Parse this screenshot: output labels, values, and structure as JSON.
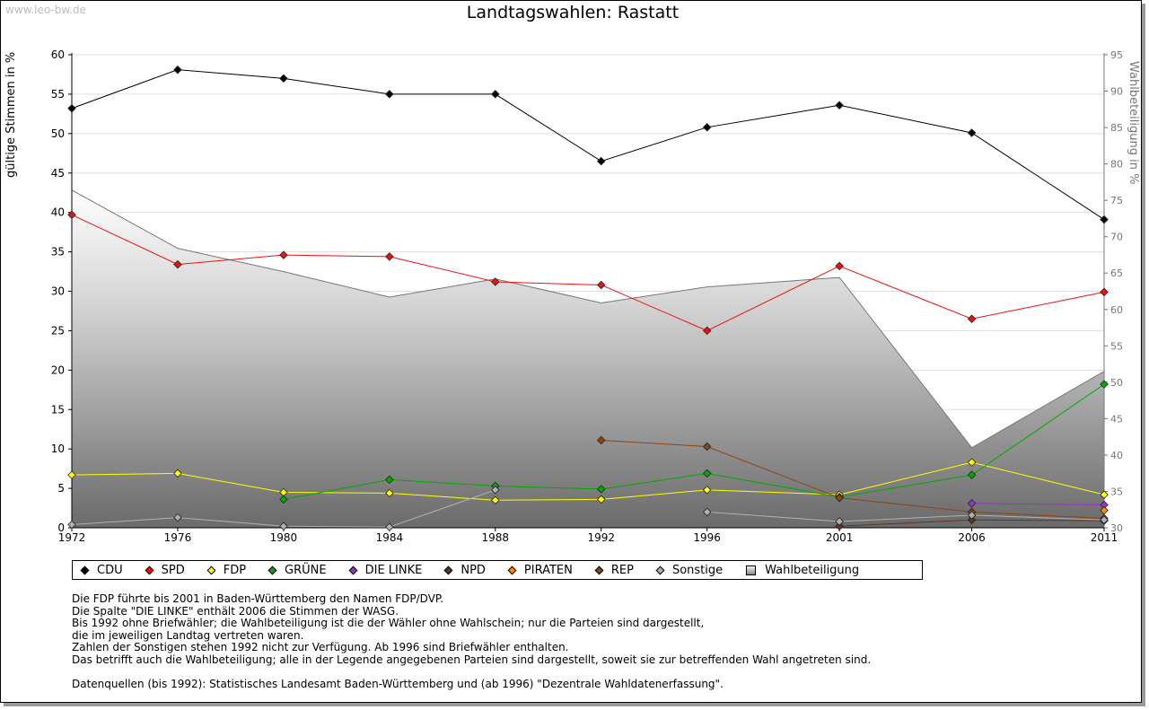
{
  "source": "www.leo-bw.de",
  "chart_data": {
    "type": "line",
    "title": "Landtagswahlen: Rastatt",
    "ylabel": "gültige Stimmen in %",
    "ylabel_right": "Wahlbeteiligung in %",
    "ylim": [
      0,
      60
    ],
    "ylim_right": [
      30,
      95
    ],
    "yticks": [
      "0",
      "5",
      "10",
      "15",
      "20",
      "25",
      "30",
      "35",
      "40",
      "45",
      "50",
      "55",
      "60"
    ],
    "yticks_right": [
      "30",
      "35",
      "40",
      "45",
      "50",
      "55",
      "60",
      "65",
      "70",
      "75",
      "80",
      "85",
      "90",
      "95"
    ],
    "x": [
      1972,
      1976,
      1980,
      1984,
      1988,
      1992,
      1996,
      2001,
      2006,
      2011
    ],
    "xtick_labels": [
      "1972",
      "1976",
      "1980",
      "1984",
      "1988",
      "1992",
      "1996",
      "2001",
      "2006",
      "2011"
    ],
    "series": [
      {
        "name": "CDU",
        "color": "#000000",
        "values": [
          53.2,
          58.1,
          57.0,
          55.0,
          55.0,
          46.5,
          50.8,
          53.6,
          50.1,
          39.1
        ]
      },
      {
        "name": "SPD",
        "color": "#ee1111",
        "values": [
          39.7,
          33.4,
          34.6,
          34.4,
          31.2,
          30.8,
          25.0,
          33.2,
          26.5,
          29.9
        ]
      },
      {
        "name": "FDP",
        "color": "#ffff00",
        "values": [
          6.7,
          6.9,
          4.5,
          4.4,
          3.5,
          3.6,
          4.8,
          4.2,
          8.3,
          4.2
        ]
      },
      {
        "name": "GRÜNE",
        "color": "#00aa00",
        "values": [
          null,
          null,
          3.6,
          6.1,
          5.3,
          4.9,
          6.9,
          3.9,
          6.7,
          18.2
        ]
      },
      {
        "name": "DIE LINKE",
        "color": "#9933cc",
        "values": [
          null,
          null,
          null,
          null,
          null,
          null,
          null,
          null,
          3.1,
          2.9
        ]
      },
      {
        "name": "NPD",
        "color": "#663322",
        "values": [
          null,
          null,
          null,
          null,
          null,
          null,
          null,
          0.2,
          1.0,
          0.9
        ]
      },
      {
        "name": "PIRATEN",
        "color": "#ff8800",
        "values": [
          null,
          null,
          null,
          null,
          null,
          null,
          null,
          null,
          null,
          2.2
        ]
      },
      {
        "name": "REP",
        "color": "#8b4513",
        "values": [
          null,
          null,
          null,
          null,
          null,
          11.1,
          10.3,
          3.8,
          2.0,
          1.2
        ]
      },
      {
        "name": "Sonstige",
        "color": "#b0b0b0",
        "values": [
          0.4,
          1.3,
          0.2,
          0.1,
          4.8,
          null,
          2.0,
          0.8,
          1.6,
          1.0
        ]
      }
    ],
    "turnout": {
      "name": "Wahlbeteiligung",
      "color": "#777777",
      "values": [
        76.4,
        68.4,
        65.2,
        61.7,
        64.2,
        60.9,
        63.1,
        64.4,
        41.0,
        51.5
      ]
    }
  },
  "legend": [
    "CDU",
    "SPD",
    "FDP",
    "GRÜNE",
    "DIE LINKE",
    "NPD",
    "PIRATEN",
    "REP",
    "Sonstige",
    "Wahlbeteiligung"
  ],
  "notes": [
    "Die FDP führte bis 2001 in Baden-Württemberg den Namen FDP/DVP.",
    "Die Spalte \"DIE LINKE\" enthält 2006 die Stimmen der WASG.",
    "Bis 1992 ohne Briefwähler; die Wahlbeteiligung ist die der Wähler ohne Wahlschein; nur die Parteien sind dargestellt,",
    "die im jeweiligen Landtag vertreten waren.",
    "Zahlen der Sonstigen stehen 1992 nicht zur Verfügung. Ab 1996 sind Briefwähler enthalten.",
    "Das betrifft auch die Wahlbeteiligung; alle in der Legende angegebenen Parteien sind dargestellt, soweit sie zur betreffenden Wahl angetreten sind."
  ],
  "datasource": "Datenquellen (bis 1992): Statistisches Landesamt Baden-Württemberg und (ab 1996) \"Dezentrale Wahldatenerfassung\"."
}
